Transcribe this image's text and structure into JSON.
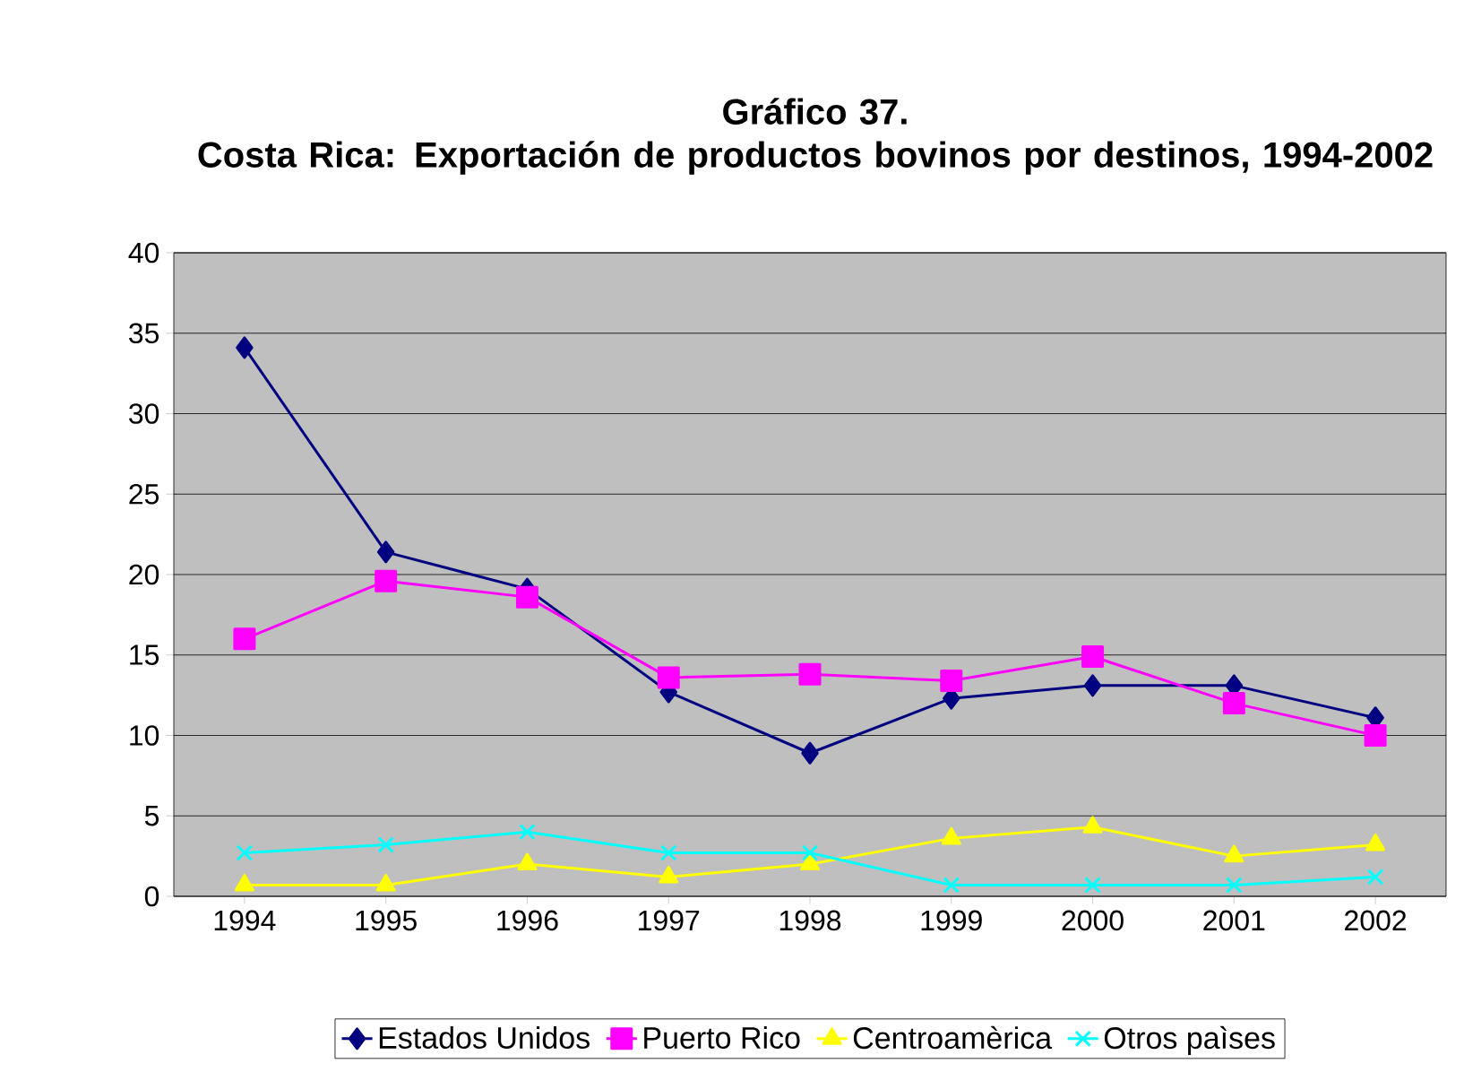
{
  "chart_data": {
    "type": "line",
    "title": "Gráfico 37.",
    "subtitle": "Costa Rica: Exportación de productos bovinos por destinos, 1994-2002",
    "categories": [
      "1994",
      "1995",
      "1996",
      "1997",
      "1998",
      "1999",
      "2000",
      "2001",
      "2002"
    ],
    "series": [
      {
        "name": "Estados Unidos",
        "color": "#000080",
        "marker": "diamond",
        "values": [
          34.1,
          21.4,
          19.1,
          12.7,
          8.9,
          12.3,
          13.1,
          13.1,
          11.1
        ]
      },
      {
        "name": "Puerto Rico",
        "color": "#ff00ff",
        "marker": "square",
        "values": [
          16.0,
          19.6,
          18.6,
          13.6,
          13.8,
          13.4,
          14.9,
          12.0,
          10.0
        ]
      },
      {
        "name": "Centroamèrica",
        "color": "#ffff00",
        "marker": "triangle",
        "values": [
          0.7,
          0.7,
          2.0,
          1.2,
          2.0,
          3.6,
          4.3,
          2.5,
          3.2
        ]
      },
      {
        "name": "Otros paìses",
        "color": "#00ffff",
        "marker": "cross",
        "values": [
          2.7,
          3.2,
          4.0,
          2.7,
          2.7,
          0.7,
          0.7,
          0.7,
          1.2
        ]
      }
    ],
    "ylim": [
      0,
      40
    ],
    "yticks": [
      0,
      5,
      10,
      15,
      20,
      25,
      30,
      35,
      40
    ],
    "grid": "y",
    "legend": "bottom",
    "line_style": "solid"
  }
}
